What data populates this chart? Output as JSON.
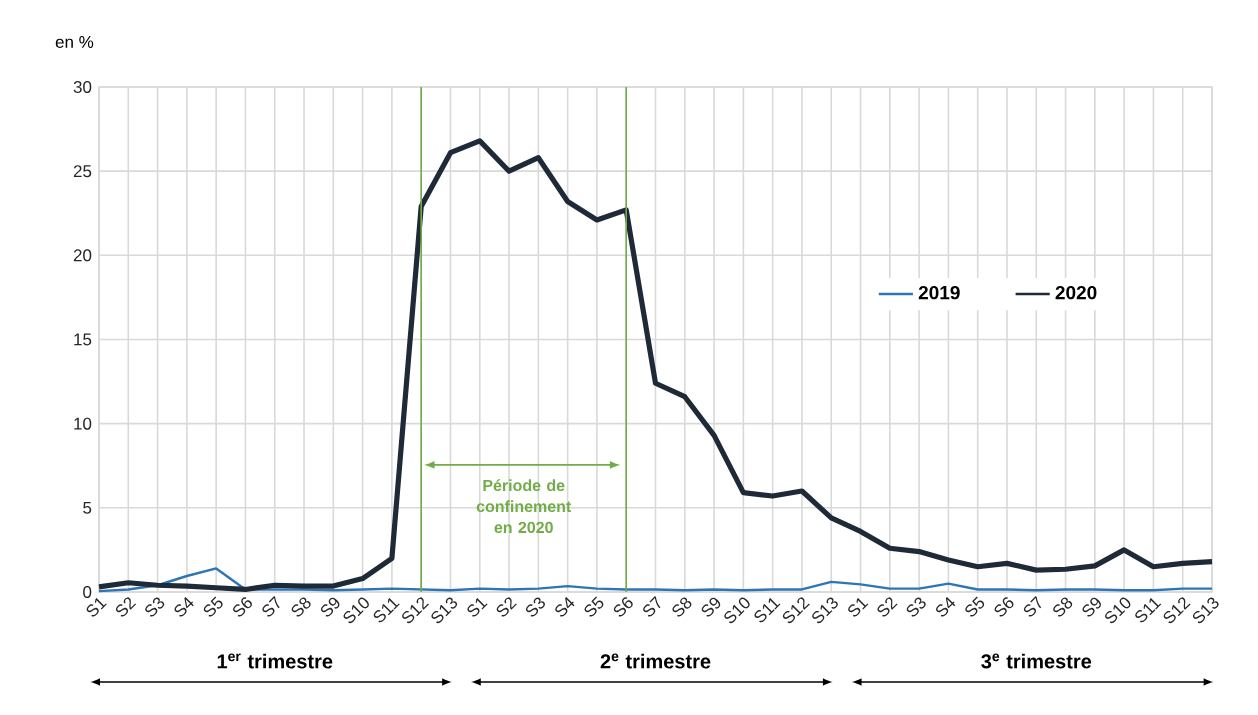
{
  "chart_data": {
    "type": "line",
    "ylabel": "en %",
    "categories": [
      "S1",
      "S2",
      "S3",
      "S4",
      "S5",
      "S6",
      "S7",
      "S8",
      "S9",
      "S10",
      "S11",
      "S12",
      "S13",
      "S1",
      "S2",
      "S3",
      "S4",
      "S5",
      "S6",
      "S7",
      "S8",
      "S9",
      "S10",
      "S11",
      "S12",
      "S13",
      "S1",
      "S2",
      "S3",
      "S4",
      "S5",
      "S6",
      "S7",
      "S8",
      "S9",
      "S10",
      "S11",
      "S12",
      "S13"
    ],
    "series": [
      {
        "name": "2019",
        "color": "#2e75b6",
        "values": [
          0.05,
          0.15,
          0.4,
          0.95,
          1.4,
          0.15,
          0.15,
          0.15,
          0.1,
          0.15,
          0.2,
          0.15,
          0.1,
          0.2,
          0.15,
          0.2,
          0.35,
          0.2,
          0.15,
          0.15,
          0.1,
          0.15,
          0.1,
          0.15,
          0.15,
          0.6,
          0.45,
          0.2,
          0.2,
          0.5,
          0.15,
          0.15,
          0.1,
          0.15,
          0.15,
          0.1,
          0.1,
          0.2,
          0.2
        ]
      },
      {
        "name": "2020",
        "color": "#1f2a38",
        "values": [
          0.3,
          0.55,
          0.4,
          0.35,
          0.25,
          0.15,
          0.4,
          0.35,
          0.35,
          0.8,
          2.0,
          22.9,
          26.1,
          26.8,
          25.0,
          25.8,
          23.2,
          22.1,
          22.7,
          12.4,
          11.6,
          9.3,
          5.9,
          5.7,
          6.0,
          4.4,
          3.6,
          2.6,
          2.4,
          1.9,
          1.5,
          1.7,
          1.3,
          1.35,
          1.55,
          2.5,
          1.5,
          1.7,
          1.8
        ]
      }
    ],
    "ylim": [
      0,
      30
    ],
    "yticks": [
      0,
      5,
      10,
      15,
      20,
      25,
      30
    ],
    "grid": true,
    "legend": "right",
    "marker": "none",
    "line_style": "solid",
    "annotations": [
      "Période de confinement en 2020",
      "1$^{er}$ trimestre",
      "2$^{e}$ trimestre",
      "3$^{e}$ trimestre"
    ]
  }
}
